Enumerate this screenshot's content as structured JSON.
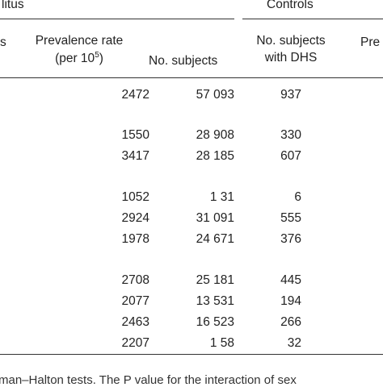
{
  "table": {
    "group_left": "litus",
    "group_right": "Controls",
    "col_left_fragment": "s",
    "col_prevalence_line1": "Prevalence rate",
    "col_prevalence_line2_prefix": "(per 10",
    "col_prevalence_exp": "5",
    "col_prevalence_line2_suffix": ")",
    "col_subjects": "No. subjects",
    "col_dhs_line1": "No. subjects",
    "col_dhs_line2": "with DHS",
    "col_right_fragment": "Pre",
    "rows": [
      {
        "prevalence": "2472",
        "subjects": "57 093",
        "dhs": "937"
      },
      {
        "prevalence": "1550",
        "subjects": "28 908",
        "dhs": "330"
      },
      {
        "prevalence": "3417",
        "subjects": "28 185",
        "dhs": "607"
      },
      {
        "prevalence": "1052",
        "subjects": "1 31",
        "dhs": "6"
      },
      {
        "prevalence": "2924",
        "subjects": "31 091",
        "dhs": "555"
      },
      {
        "prevalence": "1978",
        "subjects": "24 671",
        "dhs": "376"
      },
      {
        "prevalence": "2708",
        "subjects": "25 181",
        "dhs": "445"
      },
      {
        "prevalence": "2077",
        "subjects": "13 531",
        "dhs": "194"
      },
      {
        "prevalence": "2463",
        "subjects": "16 523",
        "dhs": "266"
      },
      {
        "prevalence": "2207",
        "subjects": "1 58",
        "dhs": "32"
      }
    ],
    "footnote": "man–Halton tests. The P value for the interaction of sex"
  }
}
